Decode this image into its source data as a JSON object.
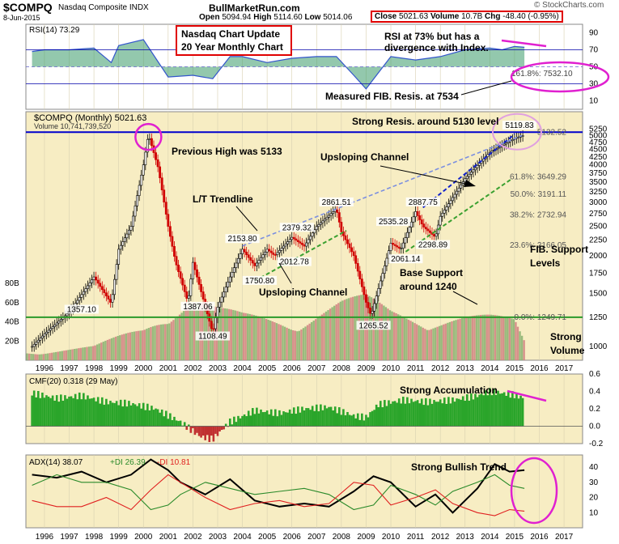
{
  "header": {
    "symbol": "$COMPQ",
    "name": "Nasdaq Composite INDX",
    "site": "BullMarketRun.com",
    "date": "8-Jun-2015",
    "open_label": "Open",
    "open": "5094.94",
    "high_label": "High",
    "high": "5114.60",
    "low_label": "Low",
    "low": "5014.06",
    "close_label": "Close",
    "close": "5021.63",
    "volume_label": "Volume",
    "volume": "10.7B",
    "chg_label": "Chg",
    "chg": "-48.40 (-0.95%)",
    "copyright": "© StockCharts.com"
  },
  "colors": {
    "up_candle": "#000000",
    "down_candle": "#d00000",
    "rsi_line": "#3355cc",
    "rsi_fill": "#3a9a6a",
    "cmf_pos": "#2aa52a",
    "cmf_neg": "#c03030",
    "resistance": "#0000cc",
    "support": "#2a9a2a",
    "annotation_box": "#e00000",
    "highlight": "#e020d0"
  },
  "chart_data": [
    {
      "type": "line",
      "panel": "rsi",
      "title": "RSI(14) 73.29",
      "ylim": [
        0,
        100
      ],
      "yticks": [
        "90",
        "70",
        "50",
        "30",
        "10"
      ],
      "x": [
        1995.5,
        1996,
        1997,
        1998,
        1998.7,
        1999,
        2000,
        2000.5,
        2001,
        2002,
        2002.8,
        2003.5,
        2004,
        2005,
        2006,
        2007,
        2007.8,
        2008.5,
        2009,
        2010,
        2011,
        2012,
        2013,
        2014,
        2014.5,
        2015,
        2015.4
      ],
      "values": [
        68,
        70,
        70,
        72,
        55,
        75,
        82,
        60,
        38,
        40,
        36,
        62,
        62,
        55,
        60,
        62,
        62,
        40,
        24,
        62,
        58,
        62,
        70,
        72,
        70,
        74,
        73
      ],
      "annotations": [
        "RSI at 73% but has a",
        "divergence with Index.",
        "161.8%: 7532.10",
        "Measured FIB. Resis. at 7534"
      ]
    },
    {
      "type": "line",
      "panel": "price",
      "title": "$COMPQ (Monthly) 5021.63",
      "subtitle": "Volume 10,741,739,520",
      "log_scale": true,
      "ylim": [
        900,
        6000
      ],
      "yticks": [
        "5250",
        "5000",
        "4750",
        "4500",
        "4250",
        "4000",
        "3750",
        "3500",
        "3250",
        "3000",
        "2750",
        "2500",
        "2250",
        "2000",
        "1750",
        "1500",
        "1250",
        "1000"
      ],
      "volume_ticks": [
        "80B",
        "60B",
        "40B",
        "20B"
      ],
      "x": [
        1995.5,
        1996,
        1997,
        1998,
        1998.7,
        1999,
        1999.5,
        2000,
        2000.2,
        2000.6,
        2001,
        2001.3,
        2001.8,
        2002,
        2002.8,
        2003,
        2003.5,
        2004,
        2004.5,
        2005,
        2005.3,
        2006,
        2006.5,
        2007,
        2007.8,
        2008,
        2008.5,
        2009,
        2009.2,
        2010,
        2010.4,
        2011,
        2011.3,
        2011.8,
        2012,
        2013,
        2014,
        2015,
        2015.4
      ],
      "values": [
        1000,
        1100,
        1300,
        1700,
        1387,
        2100,
        2500,
        4000,
        5048,
        3900,
        2500,
        1900,
        1400,
        1900,
        1108,
        1350,
        1700,
        2100,
        1850,
        2100,
        2000,
        2300,
        2150,
        2500,
        2861,
        2400,
        2000,
        1400,
        1265,
        2200,
        2100,
        2800,
        2500,
        2300,
        2700,
        3600,
        4400,
        4900,
        5021
      ],
      "volume_x": [
        1996,
        1998,
        2000,
        2001,
        2002,
        2003,
        2004,
        2006,
        2008,
        2009,
        2010,
        2012,
        2014,
        2015,
        2015.4
      ],
      "volume_b": [
        8,
        12,
        30,
        50,
        58,
        45,
        40,
        38,
        52,
        55,
        45,
        40,
        38,
        36,
        18
      ],
      "labels": [
        {
          "text": "1357.10",
          "x": 1997.5
        },
        {
          "text": "1387.06",
          "x": 2002.2
        },
        {
          "text": "1108.49",
          "x": 2002.8
        },
        {
          "text": "2153.80",
          "x": 2004.0
        },
        {
          "text": "1750.80",
          "x": 2004.7
        },
        {
          "text": "2379.32",
          "x": 2006.2
        },
        {
          "text": "2012.78",
          "x": 2006.1
        },
        {
          "text": "2861.51",
          "x": 2007.8
        },
        {
          "text": "1265.52",
          "x": 2009.3
        },
        {
          "text": "2535.28",
          "x": 2010.1
        },
        {
          "text": "2061.14",
          "x": 2010.6
        },
        {
          "text": "2887.75",
          "x": 2011.3
        },
        {
          "text": "2298.89",
          "x": 2011.7
        },
        {
          "text": "5119.83",
          "x": 2015.2
        }
      ],
      "fib_levels": [
        "5132.52",
        "61.8%: 3649.29",
        "50.0%: 3191.11",
        "38.2%: 2732.94",
        "23.6%: 2166.05",
        "0.0%: 1249.71"
      ],
      "annotations": [
        "Strong Resis. around 5130 level",
        "Previous High was 5133",
        "Upsloping Channel",
        "L/T Trendline",
        "Upsloping Channel",
        "Base Support",
        "around 1240",
        "FIB. Support",
        "Levels",
        "Strong",
        "Volume"
      ],
      "info_box": [
        "Nasdaq Chart Update",
        "20 Year Monthly Chart"
      ]
    },
    {
      "type": "bar",
      "panel": "cmf",
      "title": "CMF(20) 0.318 (29 May)",
      "ylim": [
        -0.2,
        0.6
      ],
      "yticks": [
        "0.6",
        "0.4",
        "0.2",
        "0.0",
        "-0.2"
      ],
      "x": [
        1995.5,
        1996.5,
        1997.5,
        1998.5,
        1999.5,
        2000.5,
        2001.5,
        2002.3,
        2002.8,
        2003.5,
        2004.5,
        2005.5,
        2006.5,
        2007.5,
        2008.5,
        2009,
        2009.5,
        2010.5,
        2011.5,
        2012.5,
        2013.5,
        2014,
        2014.5,
        2015,
        2015.4
      ],
      "values": [
        0.38,
        0.32,
        0.35,
        0.28,
        0.26,
        0.2,
        0.05,
        -0.12,
        -0.15,
        0.05,
        0.18,
        0.15,
        0.2,
        0.22,
        0.12,
        0.1,
        0.25,
        0.3,
        0.28,
        0.3,
        0.35,
        0.4,
        0.38,
        0.36,
        0.32
      ],
      "annotations": [
        "Strong Accumulation"
      ]
    },
    {
      "type": "line",
      "panel": "adx",
      "title": "ADX(14) 38.07",
      "ylim": [
        0,
        48
      ],
      "yticks": [
        "40",
        "30",
        "20",
        "10"
      ],
      "x": [
        1995.5,
        1996.5,
        1997.5,
        1998.5,
        1999.5,
        2000.3,
        2001,
        2001.5,
        2002.5,
        2003.5,
        2004.5,
        2005.5,
        2006.5,
        2007.5,
        2008.5,
        2009.3,
        2010,
        2011,
        2011.8,
        2012.5,
        2013.5,
        2014.2,
        2014.8,
        2015.4
      ],
      "series": [
        {
          "name": "ADX(14) 38.07",
          "color": "#000000",
          "values": [
            35,
            33,
            37,
            30,
            35,
            45,
            38,
            30,
            22,
            32,
            18,
            14,
            16,
            14,
            24,
            34,
            30,
            14,
            22,
            10,
            26,
            42,
            37,
            38
          ]
        },
        {
          "name": "+DI 26.39",
          "color": "#2a8a2a",
          "values": [
            28,
            35,
            30,
            30,
            25,
            12,
            15,
            22,
            30,
            26,
            22,
            24,
            26,
            22,
            12,
            15,
            28,
            22,
            15,
            24,
            30,
            35,
            28,
            26
          ]
        },
        {
          "name": "-DI 10.81",
          "color": "#e02020",
          "values": [
            18,
            14,
            14,
            20,
            12,
            25,
            35,
            30,
            20,
            12,
            16,
            18,
            14,
            16,
            30,
            28,
            15,
            20,
            25,
            16,
            10,
            8,
            12,
            11
          ]
        }
      ],
      "annotations": [
        "Strong Bullish Trend"
      ]
    }
  ],
  "x_axis": {
    "years": [
      "1996",
      "1997",
      "1998",
      "1999",
      "2000",
      "2001",
      "2002",
      "2003",
      "2004",
      "2005",
      "2006",
      "2007",
      "2008",
      "2009",
      "2010",
      "2011",
      "2012",
      "2013",
      "2014",
      "2015",
      "2016",
      "2017"
    ]
  }
}
